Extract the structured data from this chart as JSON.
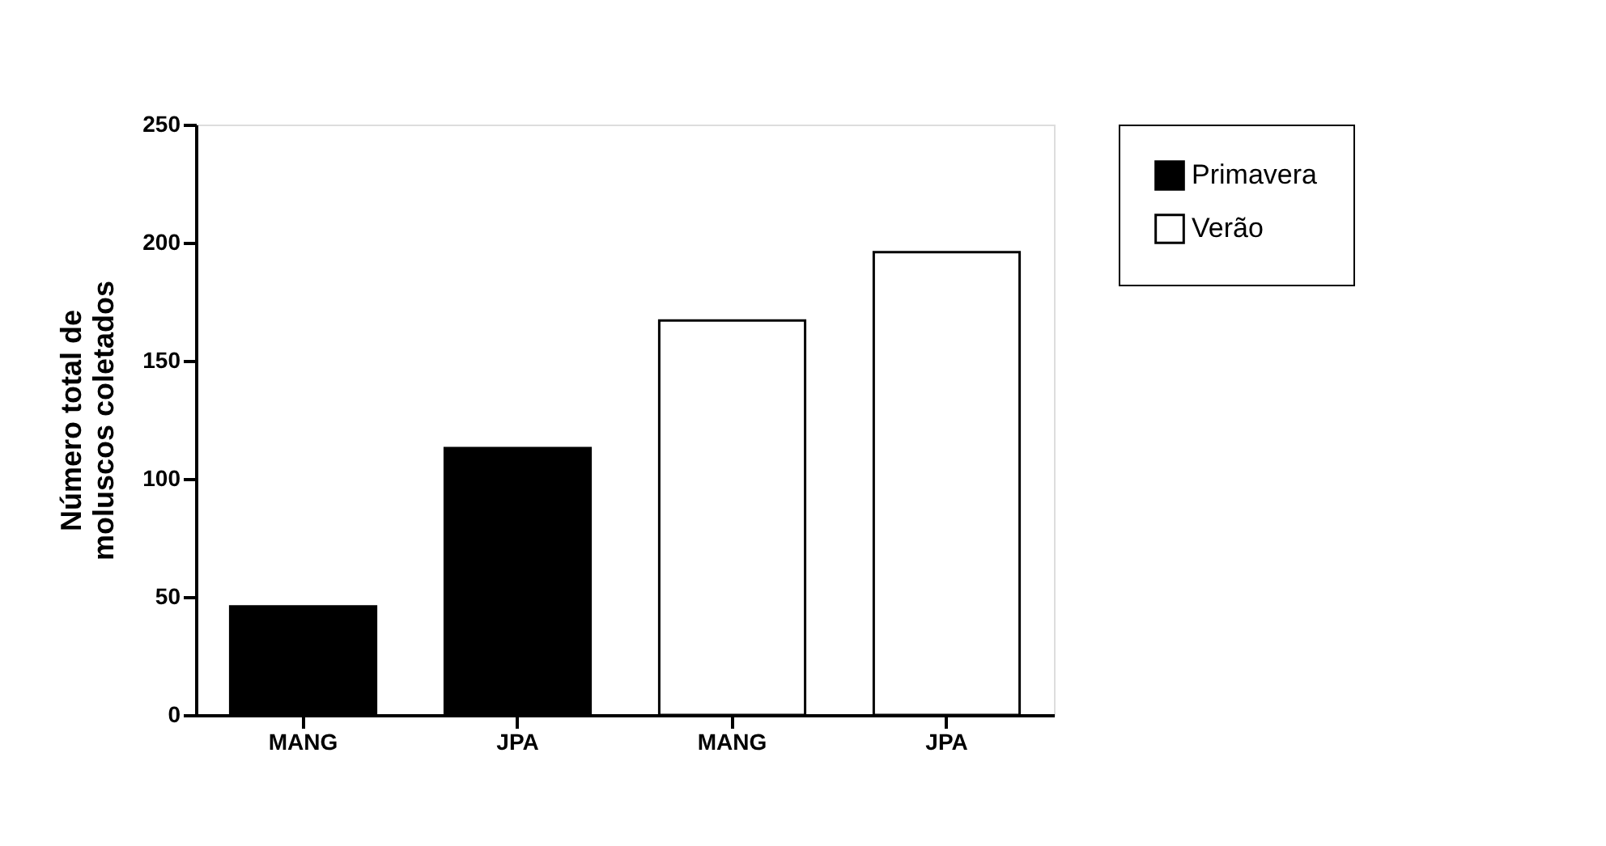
{
  "chart_data": {
    "type": "bar",
    "ylabel": "Número total de moluscos coletados",
    "categories": [
      "MANG",
      "JPA",
      "MANG",
      "JPA"
    ],
    "series": [
      {
        "name": "Primavera",
        "color": "#000000",
        "values": [
          46,
          113,
          null,
          null
        ]
      },
      {
        "name": "Verão",
        "color": "#ffffff",
        "values": [
          null,
          null,
          167,
          196
        ]
      }
    ],
    "ylim": [
      0,
      250
    ],
    "yticks": [
      0,
      50,
      100,
      150,
      200,
      250
    ],
    "grid": false,
    "legend": "right"
  }
}
